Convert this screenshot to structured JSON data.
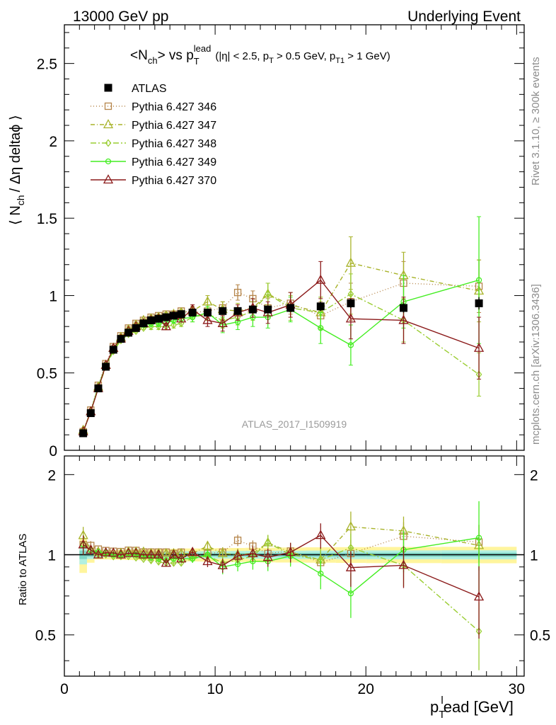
{
  "header": {
    "left": "13000 GeV pp",
    "right": "Underlying Event"
  },
  "side_labels": {
    "rivet": "Rivet 3.1.10, ≥ 300k events",
    "mcplots": "mcplots.cern.ch [arXiv:1306.3436]"
  },
  "chart_data": {
    "type": "line",
    "title_main": "<N",
    "title_main_sub": "ch",
    "title_vs": "> vs p",
    "title_vs_sub": "T",
    "title_vs_sup": "lead",
    "title_cuts": "(|η| < 2.5, p",
    "title_cuts_sub1": "T",
    "title_cuts_mid": " > 0.5 GeV, p",
    "title_cuts_sub2": "T1",
    "title_cuts_end": " > 1 GeV)",
    "ylabel_a": "⟨ N",
    "ylabel_sub": "ch",
    "ylabel_b": "/ Δη deltaϕ ⟩",
    "ratio_ylabel": "Ratio to ATLAS",
    "xlabel_a": "p",
    "xlabel_sub": "T",
    "xlabel_sup": "l",
    "xlabel_b": "ead [GeV]",
    "analysis_id": "ATLAS_2017_I1509919",
    "xlim": [
      0,
      30.5
    ],
    "ylim": [
      0,
      2.75
    ],
    "ratio_ylim": [
      0.35,
      2.35
    ],
    "x_ticks": [
      "0",
      "10",
      "20",
      "30"
    ],
    "y_ticks": [
      "0",
      "0.5",
      "1",
      "1.5",
      "2",
      "2.5"
    ],
    "ratio_ticks": [
      "0.5",
      "1",
      "2"
    ],
    "x": [
      1.25,
      1.75,
      2.25,
      2.75,
      3.25,
      3.75,
      4.25,
      4.75,
      5.25,
      5.75,
      6.25,
      6.75,
      7.25,
      7.75,
      8.5,
      9.5,
      10.5,
      11.5,
      12.5,
      13.5,
      15.0,
      17.0,
      19.0,
      22.5,
      27.5
    ],
    "series": [
      {
        "name": "ATLAS",
        "color": "#000000",
        "marker": "square-filled",
        "dash": "none",
        "values": [
          0.11,
          0.24,
          0.4,
          0.54,
          0.65,
          0.72,
          0.76,
          0.79,
          0.82,
          0.84,
          0.85,
          0.86,
          0.87,
          0.88,
          0.89,
          0.89,
          0.9,
          0.9,
          0.91,
          0.91,
          0.92,
          0.93,
          0.95,
          0.92,
          0.95
        ],
        "errors": [
          0.01,
          0.01,
          0.01,
          0.01,
          0.01,
          0.01,
          0.01,
          0.01,
          0.01,
          0.01,
          0.01,
          0.01,
          0.01,
          0.01,
          0.01,
          0.02,
          0.02,
          0.02,
          0.02,
          0.02,
          0.02,
          0.03,
          0.03,
          0.03,
          0.04
        ]
      },
      {
        "name": "Pythia 6.427 346",
        "color": "#b5854a",
        "marker": "square-open",
        "dash": "1,3",
        "values": [
          0.12,
          0.26,
          0.42,
          0.56,
          0.67,
          0.74,
          0.79,
          0.82,
          0.84,
          0.86,
          0.87,
          0.88,
          0.88,
          0.9,
          0.89,
          0.9,
          0.92,
          1.02,
          0.98,
          0.92,
          0.95,
          0.87,
          0.96,
          1.08,
          1.06
        ],
        "errors": [
          0.01,
          0.01,
          0.01,
          0.01,
          0.01,
          0.01,
          0.01,
          0.01,
          0.01,
          0.02,
          0.02,
          0.02,
          0.02,
          0.02,
          0.03,
          0.04,
          0.04,
          0.05,
          0.05,
          0.06,
          0.07,
          0.09,
          0.12,
          0.14,
          0.17
        ]
      },
      {
        "name": "Pythia 6.427 347",
        "color": "#a8b32a",
        "marker": "triangle-open",
        "dash": "6,3,1,3",
        "values": [
          0.13,
          0.25,
          0.41,
          0.55,
          0.66,
          0.73,
          0.78,
          0.81,
          0.84,
          0.85,
          0.86,
          0.87,
          0.88,
          0.89,
          0.9,
          0.96,
          0.91,
          0.9,
          0.92,
          1.01,
          0.94,
          0.89,
          1.21,
          1.13,
          1.03
        ],
        "errors": [
          0.01,
          0.01,
          0.01,
          0.01,
          0.01,
          0.01,
          0.01,
          0.01,
          0.01,
          0.02,
          0.02,
          0.02,
          0.02,
          0.02,
          0.03,
          0.04,
          0.05,
          0.05,
          0.06,
          0.07,
          0.08,
          0.1,
          0.17,
          0.15,
          0.2
        ]
      },
      {
        "name": "Pythia 6.427 348",
        "color": "#9acd32",
        "marker": "diamond-open",
        "dash": "8,3,2,3",
        "values": [
          0.12,
          0.25,
          0.4,
          0.54,
          0.64,
          0.71,
          0.75,
          0.77,
          0.79,
          0.8,
          0.8,
          0.8,
          0.81,
          0.82,
          0.86,
          0.88,
          0.84,
          0.86,
          0.9,
          1.01,
          0.92,
          0.89,
          1.01,
          0.84,
          0.49
        ],
        "errors": [
          0.01,
          0.01,
          0.01,
          0.01,
          0.01,
          0.01,
          0.01,
          0.01,
          0.01,
          0.02,
          0.02,
          0.02,
          0.02,
          0.02,
          0.03,
          0.04,
          0.05,
          0.05,
          0.06,
          0.07,
          0.08,
          0.1,
          0.13,
          0.14,
          0.14
        ]
      },
      {
        "name": "Pythia 6.427 349",
        "color": "#44ee22",
        "marker": "circle-open",
        "dash": "none",
        "values": [
          0.12,
          0.25,
          0.41,
          0.55,
          0.65,
          0.72,
          0.77,
          0.79,
          0.81,
          0.82,
          0.82,
          0.82,
          0.84,
          0.85,
          0.86,
          0.89,
          0.81,
          0.83,
          0.86,
          0.86,
          0.91,
          0.79,
          0.68,
          0.96,
          1.1
        ],
        "errors": [
          0.01,
          0.01,
          0.01,
          0.01,
          0.01,
          0.01,
          0.01,
          0.01,
          0.01,
          0.02,
          0.02,
          0.02,
          0.02,
          0.02,
          0.03,
          0.04,
          0.05,
          0.05,
          0.06,
          0.07,
          0.08,
          0.1,
          0.13,
          0.17,
          0.41
        ]
      },
      {
        "name": "Pythia 6.427 370",
        "color": "#8b1a1a",
        "marker": "triangle-open",
        "dash": "none",
        "values": [
          0.12,
          0.25,
          0.4,
          0.55,
          0.66,
          0.72,
          0.77,
          0.8,
          0.82,
          0.84,
          0.85,
          0.8,
          0.87,
          0.85,
          0.91,
          0.84,
          0.82,
          0.89,
          0.92,
          0.89,
          0.94,
          1.1,
          0.85,
          0.84,
          0.66
        ],
        "errors": [
          0.01,
          0.01,
          0.01,
          0.01,
          0.01,
          0.01,
          0.01,
          0.01,
          0.01,
          0.02,
          0.02,
          0.02,
          0.02,
          0.02,
          0.03,
          0.04,
          0.05,
          0.05,
          0.06,
          0.07,
          0.08,
          0.12,
          0.13,
          0.15,
          0.2
        ]
      }
    ],
    "band_colors": [
      "#fff59d",
      "#b2f0e0",
      "#7fd6c6"
    ]
  }
}
